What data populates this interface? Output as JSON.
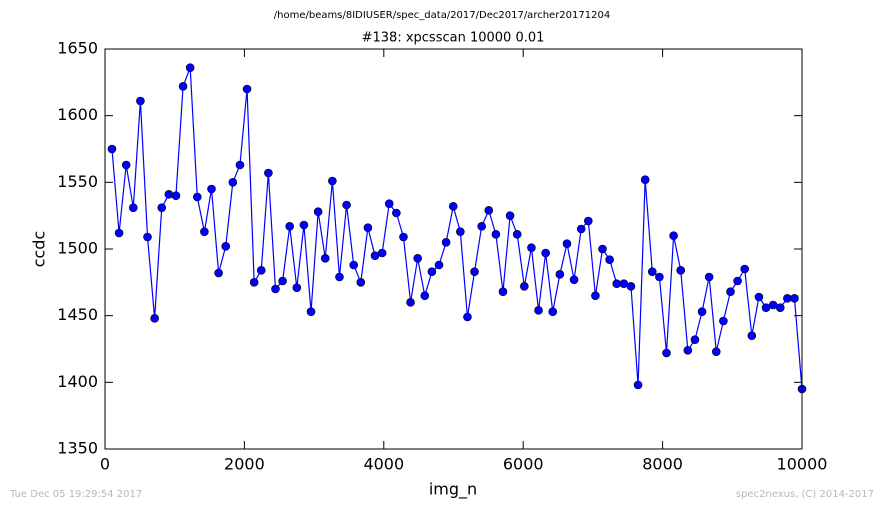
{
  "chart_data": {
    "type": "line",
    "suptitle": "/home/beams/8IDIUSER/spec_data/2017/Dec2017/archer20171204",
    "title": "#138: xpcsscan 10000 0.01",
    "xlabel": "img_n",
    "ylabel": "ccdc",
    "footer_left": "Tue Dec 05 19:29:54 2017",
    "footer_right": "spec2nexus, (C) 2014-2017",
    "xlim": [
      0,
      10000
    ],
    "xticks": [
      0,
      2000,
      4000,
      6000,
      8000,
      10000
    ],
    "ylim": [
      1350,
      1650
    ],
    "yticks": [
      1350,
      1400,
      1450,
      1500,
      1550,
      1600,
      1650
    ],
    "x": [
      100,
      202,
      304,
      406,
      508,
      610,
      712,
      814,
      916,
      1018,
      1120,
      1222,
      1324,
      1426,
      1528,
      1630,
      1732,
      1834,
      1936,
      2038,
      2140,
      2242,
      2344,
      2446,
      2548,
      2650,
      2752,
      2854,
      2956,
      3058,
      3160,
      3262,
      3364,
      3466,
      3568,
      3670,
      3772,
      3874,
      3976,
      4078,
      4180,
      4282,
      4384,
      4486,
      4588,
      4690,
      4792,
      4894,
      4996,
      5098,
      5200,
      5302,
      5404,
      5506,
      5608,
      5710,
      5812,
      5914,
      6016,
      6118,
      6220,
      6322,
      6424,
      6526,
      6628,
      6730,
      6832,
      6934,
      7036,
      7138,
      7240,
      7342,
      7444,
      7546,
      7648,
      7750,
      7852,
      7954,
      8056,
      8158,
      8260,
      8362,
      8464,
      8566,
      8668,
      8770,
      8872,
      8974,
      9076,
      9178,
      9280,
      9382,
      9484,
      9586,
      9688,
      9790,
      9892,
      10000
    ],
    "series": [
      {
        "color": "#0000ff",
        "values": [
          1575,
          1512,
          1563,
          1531,
          1611,
          1509,
          1448,
          1531,
          1541,
          1540,
          1622,
          1636,
          1539,
          1513,
          1545,
          1482,
          1502,
          1550,
          1563,
          1620,
          1475,
          1484,
          1557,
          1470,
          1476,
          1517,
          1471,
          1518,
          1453,
          1528,
          1493,
          1551,
          1479,
          1533,
          1488,
          1475,
          1516,
          1495,
          1497,
          1534,
          1527,
          1509,
          1460,
          1493,
          1465,
          1483,
          1488,
          1505,
          1532,
          1513,
          1449,
          1483,
          1517,
          1529,
          1511,
          1468,
          1525,
          1511,
          1472,
          1501,
          1454,
          1497,
          1453,
          1481,
          1504,
          1477,
          1515,
          1521,
          1465,
          1500,
          1492,
          1474,
          1474,
          1472,
          1398,
          1552,
          1483,
          1479,
          1422,
          1510,
          1484,
          1424,
          1432,
          1453,
          1479,
          1423,
          1446,
          1468,
          1476,
          1485,
          1435,
          1464,
          1456,
          1458,
          1456,
          1463,
          1463,
          1395
        ]
      }
    ]
  }
}
